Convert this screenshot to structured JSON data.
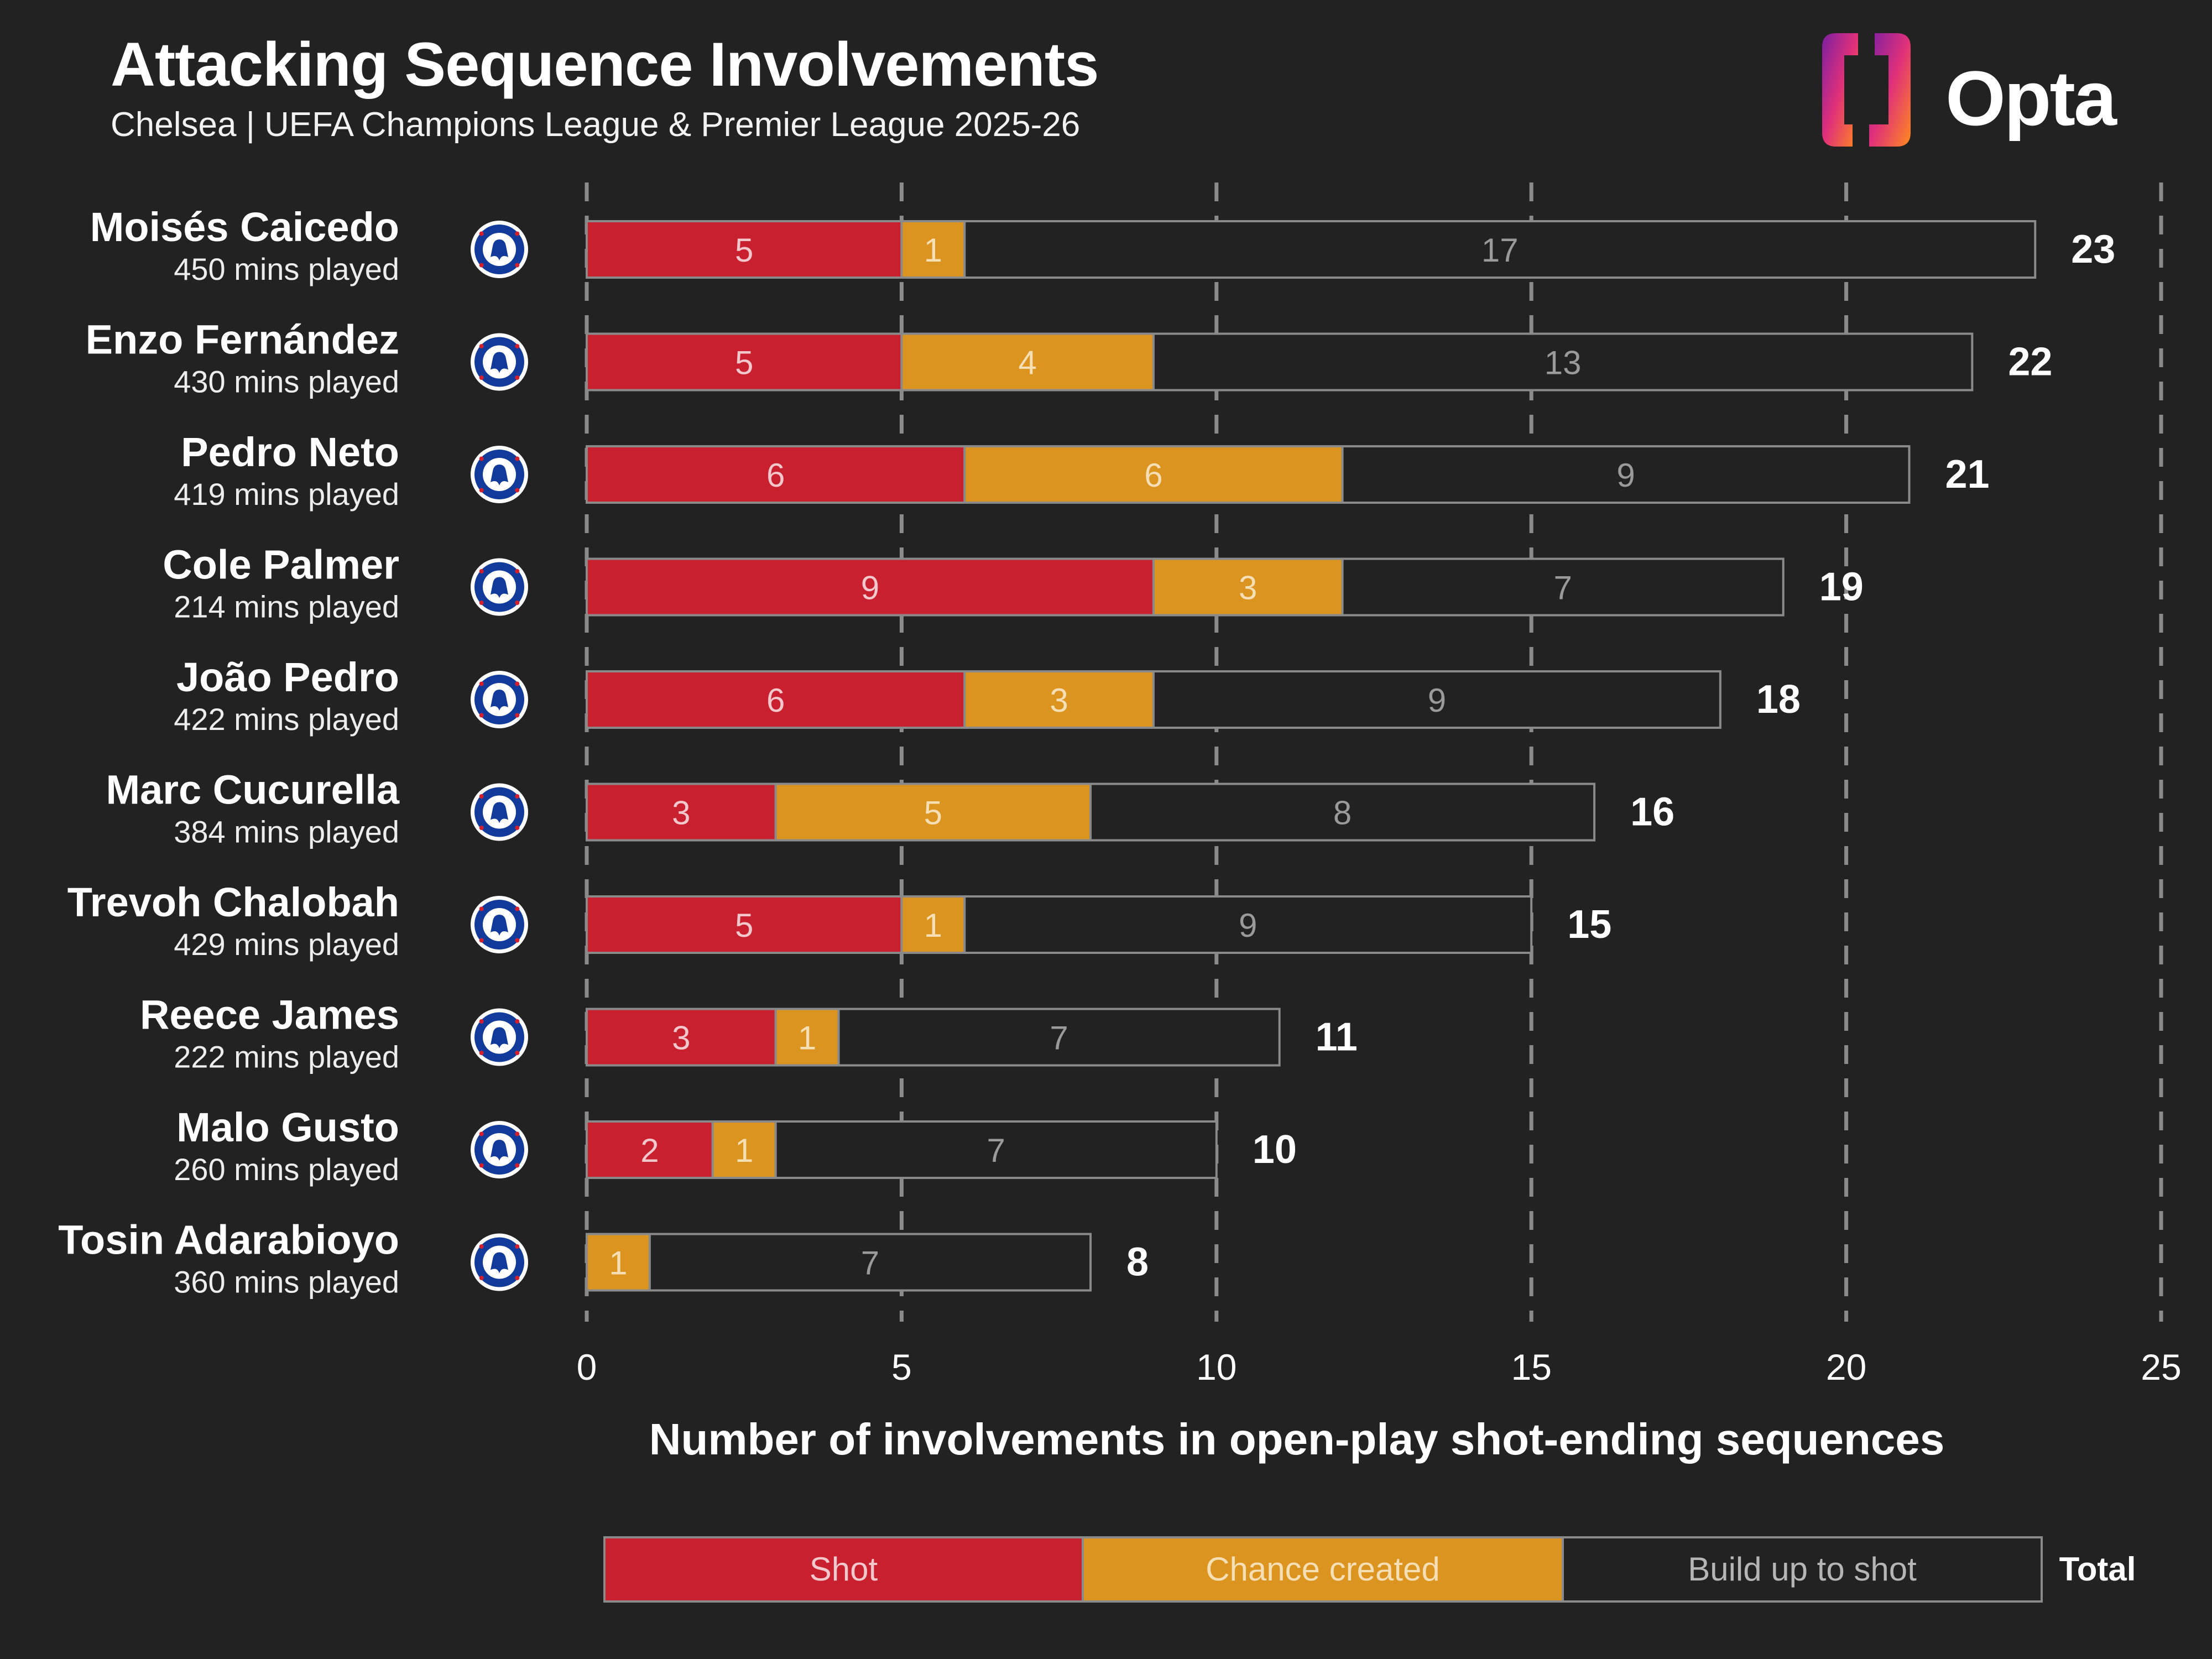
{
  "header": {
    "title": "Attacking Sequence Involvements",
    "subtitle": "Chelsea | UEFA Champions League & Premier League 2025-26"
  },
  "brand": {
    "name": "Opta",
    "icon": "opta-logo-icon"
  },
  "colors": {
    "background": "#222222",
    "shot": "#c8202e",
    "chance_created": "#db9420",
    "build_up": "#222222",
    "bar_outline": "#8a8a8a",
    "grid": "#8a8a8a",
    "text": "#ffffff"
  },
  "chart_data": {
    "type": "bar",
    "orientation": "horizontal",
    "stacked": true,
    "xlabel": "Number of involvements in open-play shot-ending sequences",
    "xlim": [
      0,
      25
    ],
    "xticks": [
      0,
      5,
      10,
      15,
      20,
      25
    ],
    "grid": "vertical dashed",
    "team_badge_icon": "chelsea-badge-icon",
    "players": [
      {
        "name": "Moisés Caicedo",
        "minutes": "450 mins played"
      },
      {
        "name": "Enzo Fernández",
        "minutes": "430 mins played"
      },
      {
        "name": "Pedro Neto",
        "minutes": "419 mins played"
      },
      {
        "name": "Cole Palmer",
        "minutes": "214 mins played"
      },
      {
        "name": "João Pedro",
        "minutes": "422 mins played"
      },
      {
        "name": "Marc Cucurella",
        "minutes": "384 mins played"
      },
      {
        "name": "Trevoh Chalobah",
        "minutes": "429 mins played"
      },
      {
        "name": "Reece James",
        "minutes": "222 mins played"
      },
      {
        "name": "Malo Gusto",
        "minutes": "260 mins played"
      },
      {
        "name": "Tosin Adarabioyo",
        "minutes": "360 mins played"
      }
    ],
    "series": [
      {
        "name": "Shot",
        "color": "#c8202e",
        "values": [
          5,
          5,
          6,
          9,
          6,
          3,
          5,
          3,
          2,
          0
        ]
      },
      {
        "name": "Chance created",
        "color": "#db9420",
        "values": [
          1,
          4,
          6,
          3,
          3,
          5,
          1,
          1,
          1,
          1
        ]
      },
      {
        "name": "Build up to shot",
        "color": "#222222",
        "values": [
          17,
          13,
          9,
          7,
          9,
          8,
          9,
          7,
          7,
          7
        ]
      }
    ],
    "totals": [
      23,
      22,
      21,
      19,
      18,
      16,
      15,
      11,
      10,
      8
    ],
    "legend": {
      "position": "bottom",
      "total_label": "Total"
    }
  }
}
